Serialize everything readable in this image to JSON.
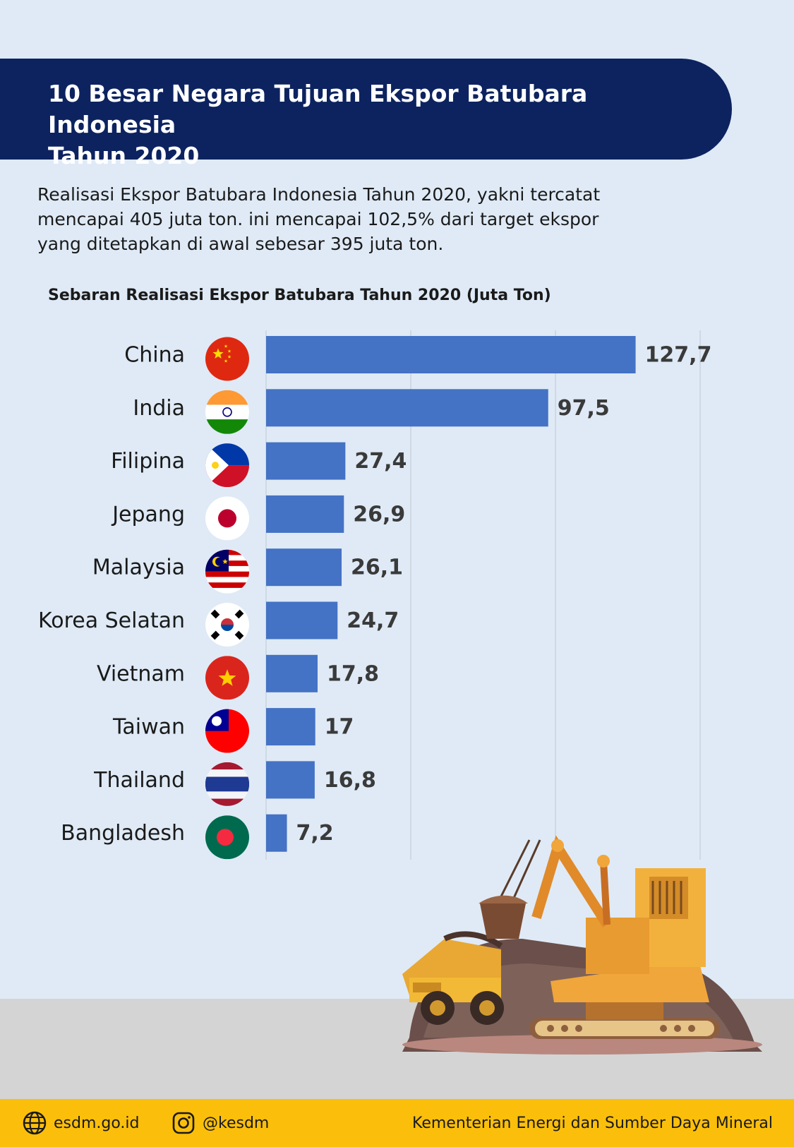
{
  "title": {
    "line1": "10 Besar Negara Tujuan Ekspor Batubara Indonesia",
    "line2": "Tahun 2020"
  },
  "intro": {
    "line1": "Realisasi Ekspor Batubara Indonesia Tahun 2020, yakni tercatat",
    "line2": "mencapai 405 juta ton. ini mencapai 102,5% dari target ekspor",
    "line3": "yang ditetapkan di awal sebesar 395 juta ton."
  },
  "chart_data": {
    "type": "bar",
    "orientation": "horizontal",
    "title": "Sebaran Realisasi Ekspor Batubara Tahun 2020 (Juta Ton)",
    "categories": [
      "China",
      "India",
      "Filipina",
      "Jepang",
      "Malaysia",
      "Korea Selatan",
      "Vietnam",
      "Taiwan",
      "Thailand",
      "Bangladesh"
    ],
    "values": [
      127.7,
      97.5,
      27.4,
      26.9,
      26.1,
      24.7,
      17.8,
      17,
      16.8,
      7.2
    ],
    "value_labels": [
      "127,7",
      "97,5",
      "27,4",
      "26,9",
      "26,1",
      "24,7",
      "17,8",
      "17",
      "16,8",
      "7,2"
    ],
    "flags": [
      "china-flag-icon",
      "india-flag-icon",
      "philippines-flag-icon",
      "japan-flag-icon",
      "malaysia-flag-icon",
      "south-korea-flag-icon",
      "vietnam-flag-icon",
      "taiwan-flag-icon",
      "thailand-flag-icon",
      "bangladesh-flag-icon"
    ],
    "xlim": [
      0,
      150
    ],
    "grid": true,
    "bar_color": "#4472c4"
  },
  "footer": {
    "website": "esdm.go.id",
    "instagram": "@kesdm",
    "ministry": "Kementerian Energi dan Sumber Daya Mineral"
  },
  "colors": {
    "banner": "#0d2360",
    "background": "#dfeaf6",
    "footer": "#fbbf0b",
    "bar": "#4472c4"
  }
}
